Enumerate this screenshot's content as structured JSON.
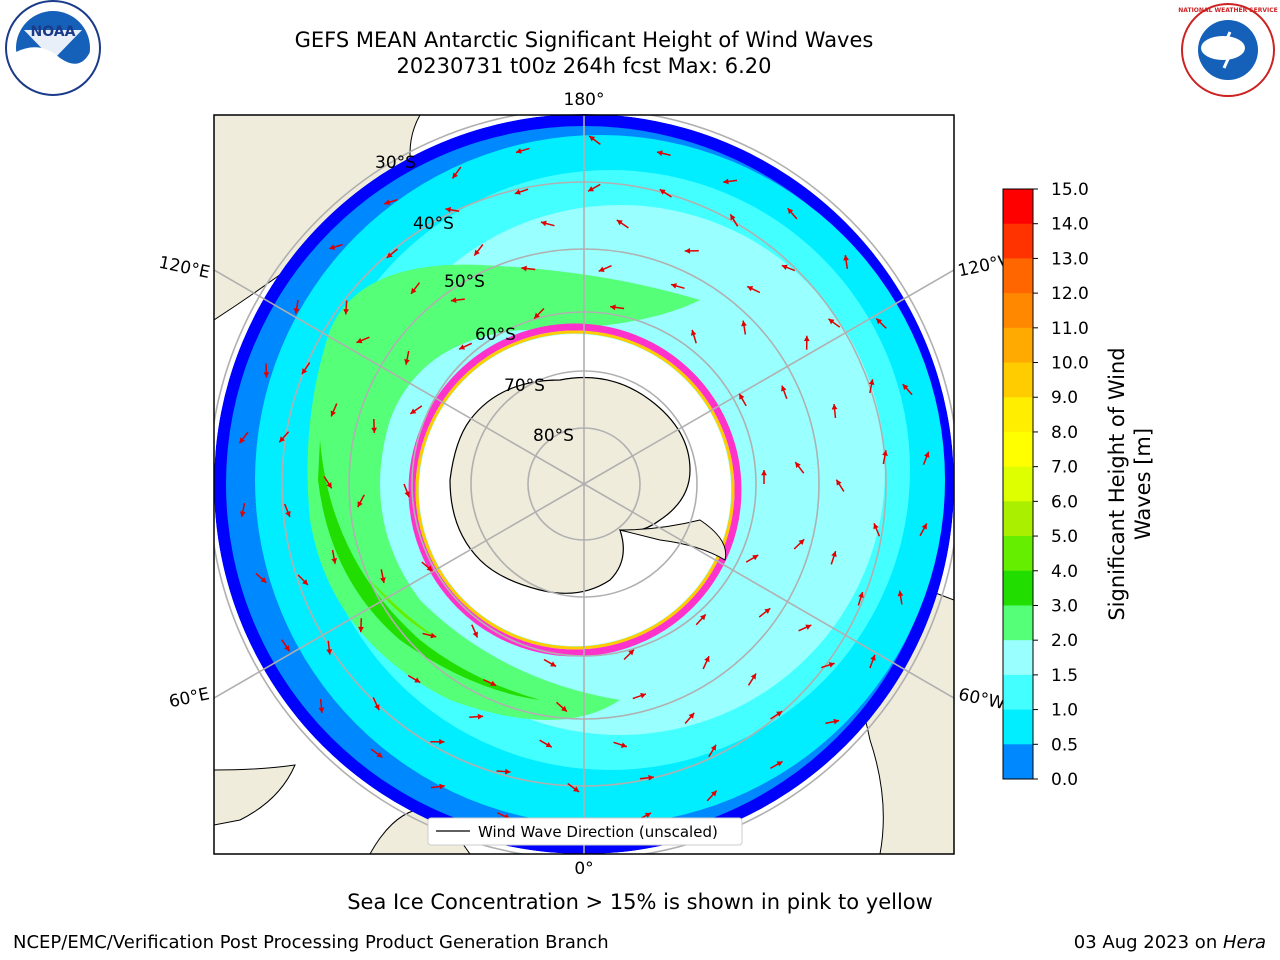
{
  "header": {
    "title_line1": "GEFS MEAN Antarctic Significant Height of Wind Waves",
    "title_line2": "20230731 t00z 264h fcst   Max: 6.20"
  },
  "logos": {
    "left": {
      "name": "noaa-logo",
      "text": "NOAA"
    },
    "right": {
      "name": "national-weather-service-logo",
      "text": "NATIONAL WEATHER SERVICE"
    }
  },
  "map": {
    "projection": "south-polar-stereographic",
    "longitude_labels": {
      "top": "180°",
      "bottom": "0°",
      "left_upper": "120°E",
      "left_lower": "60°E",
      "right_upper": "120°W",
      "right_lower": "60°W"
    },
    "latitude_labels": [
      "30°S",
      "40°S",
      "50°S",
      "60°S",
      "70°S",
      "80°S"
    ],
    "legend": "Wind Wave Direction (unscaled)"
  },
  "colorbar": {
    "label": "Significant Height of Wind Waves [m]",
    "ticks": [
      "15.0",
      "14.0",
      "13.0",
      "12.0",
      "11.0",
      "10.0",
      "9.0",
      "8.0",
      "7.0",
      "6.0",
      "5.0",
      "4.0",
      "3.0",
      "2.0",
      "1.5",
      "1.0",
      "0.5",
      "0.0"
    ],
    "colors": [
      "#ff0000",
      "#ff3300",
      "#ff6600",
      "#ff8800",
      "#ffaa00",
      "#ffcc00",
      "#ffee00",
      "#ffff00",
      "#ddff00",
      "#aaee00",
      "#66ee00",
      "#22dd00",
      "#55ff77",
      "#99ffff",
      "#44ffff",
      "#00eeff",
      "#0088ff",
      "#0000ff"
    ]
  },
  "note": "Sea Ice Concentration > 15% is shown in pink to yellow",
  "footer": {
    "left": "NCEP/EMC/Verification Post Processing Product Generation Branch",
    "right_date": "03 Aug 2023 on ",
    "right_host": "Hera"
  }
}
